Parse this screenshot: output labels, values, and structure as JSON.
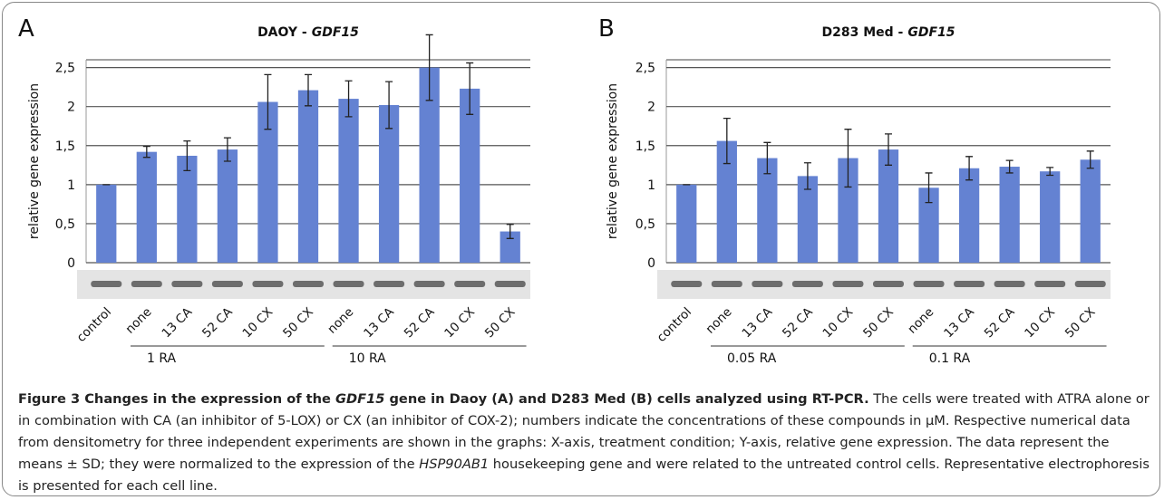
{
  "chart_data": [
    {
      "type": "bar",
      "panel": "A",
      "title": [
        "DAOY -",
        "GDF15"
      ],
      "ylabel": "relative gene expression",
      "categories": [
        "control",
        "none",
        "13 CA",
        "52 CA",
        "10 CX",
        "50 CX",
        "none",
        "13 CA",
        "52 CA",
        "10 CX",
        "50 CX"
      ],
      "series": [
        {
          "color": "#6482d2",
          "values": [
            1.0,
            1.42,
            1.37,
            1.45,
            2.06,
            2.21,
            2.1,
            2.02,
            2.5,
            2.23,
            0.4
          ],
          "errors": [
            0.0,
            0.07,
            0.19,
            0.15,
            0.35,
            0.2,
            0.23,
            0.3,
            0.42,
            0.33,
            0.09
          ]
        }
      ],
      "groups": [
        {
          "label": "1 RA",
          "start": 1,
          "end": 5
        },
        {
          "label": "10 RA",
          "start": 6,
          "end": 10
        }
      ],
      "ylim": [
        0,
        2.6
      ],
      "yticks": [
        0,
        {
          "value": 0.5,
          "label": "0,5"
        },
        1,
        {
          "value": 1.5,
          "label": "1,5"
        },
        2,
        {
          "value": 2.5,
          "label": "2,5"
        }
      ],
      "grid": true
    },
    {
      "type": "bar",
      "panel": "B",
      "title": [
        "D283 Med -",
        "GDF15"
      ],
      "ylabel": "relative gene expression",
      "categories": [
        "control",
        "none",
        "13 CA",
        "52 CA",
        "10 CX",
        "50 CX",
        "none",
        "13 CA",
        "52 CA",
        "10 CX",
        "50 CX"
      ],
      "series": [
        {
          "color": "#6482d2",
          "values": [
            1.0,
            1.56,
            1.34,
            1.11,
            1.34,
            1.45,
            0.96,
            1.21,
            1.23,
            1.17,
            1.32
          ],
          "errors": [
            0.0,
            0.29,
            0.2,
            0.17,
            0.37,
            0.2,
            0.19,
            0.15,
            0.08,
            0.05,
            0.11
          ]
        }
      ],
      "groups": [
        {
          "label": "0.05 RA",
          "start": 1,
          "end": 5
        },
        {
          "label": "0.1 RA",
          "start": 6,
          "end": 10
        }
      ],
      "ylim": [
        0,
        2.6
      ],
      "yticks": [
        0,
        {
          "value": 0.5,
          "label": "0,5"
        },
        1,
        {
          "value": 1.5,
          "label": "1,5"
        },
        2,
        {
          "value": 2.5,
          "label": "2,5"
        }
      ],
      "grid": true
    }
  ],
  "caption": [
    {
      "text": "Figure 3 Changes in the expression of the ",
      "bold": true,
      "italic": false
    },
    {
      "text": "GDF15",
      "bold": true,
      "italic": true
    },
    {
      "text": " gene in Daoy (A) and D283 Med (B) cells analyzed using RT-PCR.",
      "bold": true,
      "italic": false
    },
    {
      "text": " The cells were treated with ATRA alone or in combination with CA (an inhibitor of 5-LOX) or CX (an inhibitor of COX-2); numbers indicate the concentrations of these compounds in µM. Respective numerical data from densitometry for three independent experiments are shown in the graphs: X-axis, treatment condition; Y-axis, relative gene expression. The data represent the means ± SD; they were normalized to the expression of the ",
      "bold": false,
      "italic": false
    },
    {
      "text": "HSP90AB1",
      "bold": false,
      "italic": true
    },
    {
      "text": " housekeeping gene and were related to the untreated control cells. Representative electrophoresis is presented for each cell line.",
      "bold": false,
      "italic": false
    }
  ]
}
